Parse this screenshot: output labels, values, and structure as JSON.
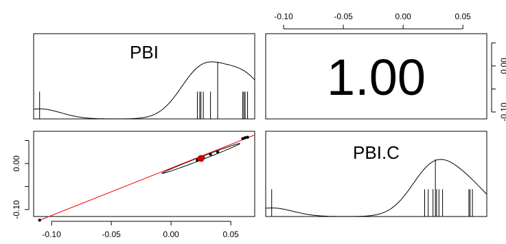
{
  "chart_data": {
    "type": "scatter",
    "layout": "pairs-matrix",
    "variables": [
      "PBI",
      "PBI.C"
    ],
    "axis_ticks": [
      "-0.10",
      "-0.05",
      "0.00",
      "0.05"
    ],
    "axis_tick_values": [
      -0.1,
      -0.05,
      0.0,
      0.05
    ],
    "range": [
      -0.115,
      0.07
    ],
    "correlation_label": "1.00",
    "diag_PBI": {
      "label": "PBI",
      "rug": [
        -0.11,
        0.022,
        0.024,
        0.025,
        0.027,
        0.033,
        0.06,
        0.061,
        0.062,
        0.064
      ],
      "center_line": 0.039
    },
    "diag_PBIC": {
      "label": "PBI.C",
      "rug": [
        -0.11,
        0.018,
        0.021,
        0.025,
        0.028,
        0.03,
        0.033,
        0.055,
        0.056,
        0.058
      ],
      "center_line": 0.027
    },
    "scatter": {
      "points": [
        {
          "x": -0.11,
          "y": -0.123
        },
        {
          "x": 0.022,
          "y": 0.007
        },
        {
          "x": 0.024,
          "y": 0.009
        },
        {
          "x": 0.025,
          "y": 0.011
        },
        {
          "x": 0.027,
          "y": 0.013
        },
        {
          "x": 0.033,
          "y": 0.02
        },
        {
          "x": 0.039,
          "y": 0.025
        },
        {
          "x": 0.06,
          "y": 0.054
        },
        {
          "x": 0.062,
          "y": 0.056
        },
        {
          "x": 0.064,
          "y": 0.057
        }
      ],
      "mean_point": {
        "x": 0.025,
        "y": 0.011
      },
      "fit_line": {
        "from": [
          -0.11,
          -0.123
        ],
        "to": [
          0.07,
          0.062
        ]
      },
      "ellipse_center": [
        0.025,
        0.011
      ],
      "ellipse_a": 0.046,
      "ellipse_b": 0.0025,
      "ellipse_angle_deg": 45,
      "line_color": "#ff0000",
      "point_color": "#000000",
      "mean_color": "#cc0000"
    }
  }
}
